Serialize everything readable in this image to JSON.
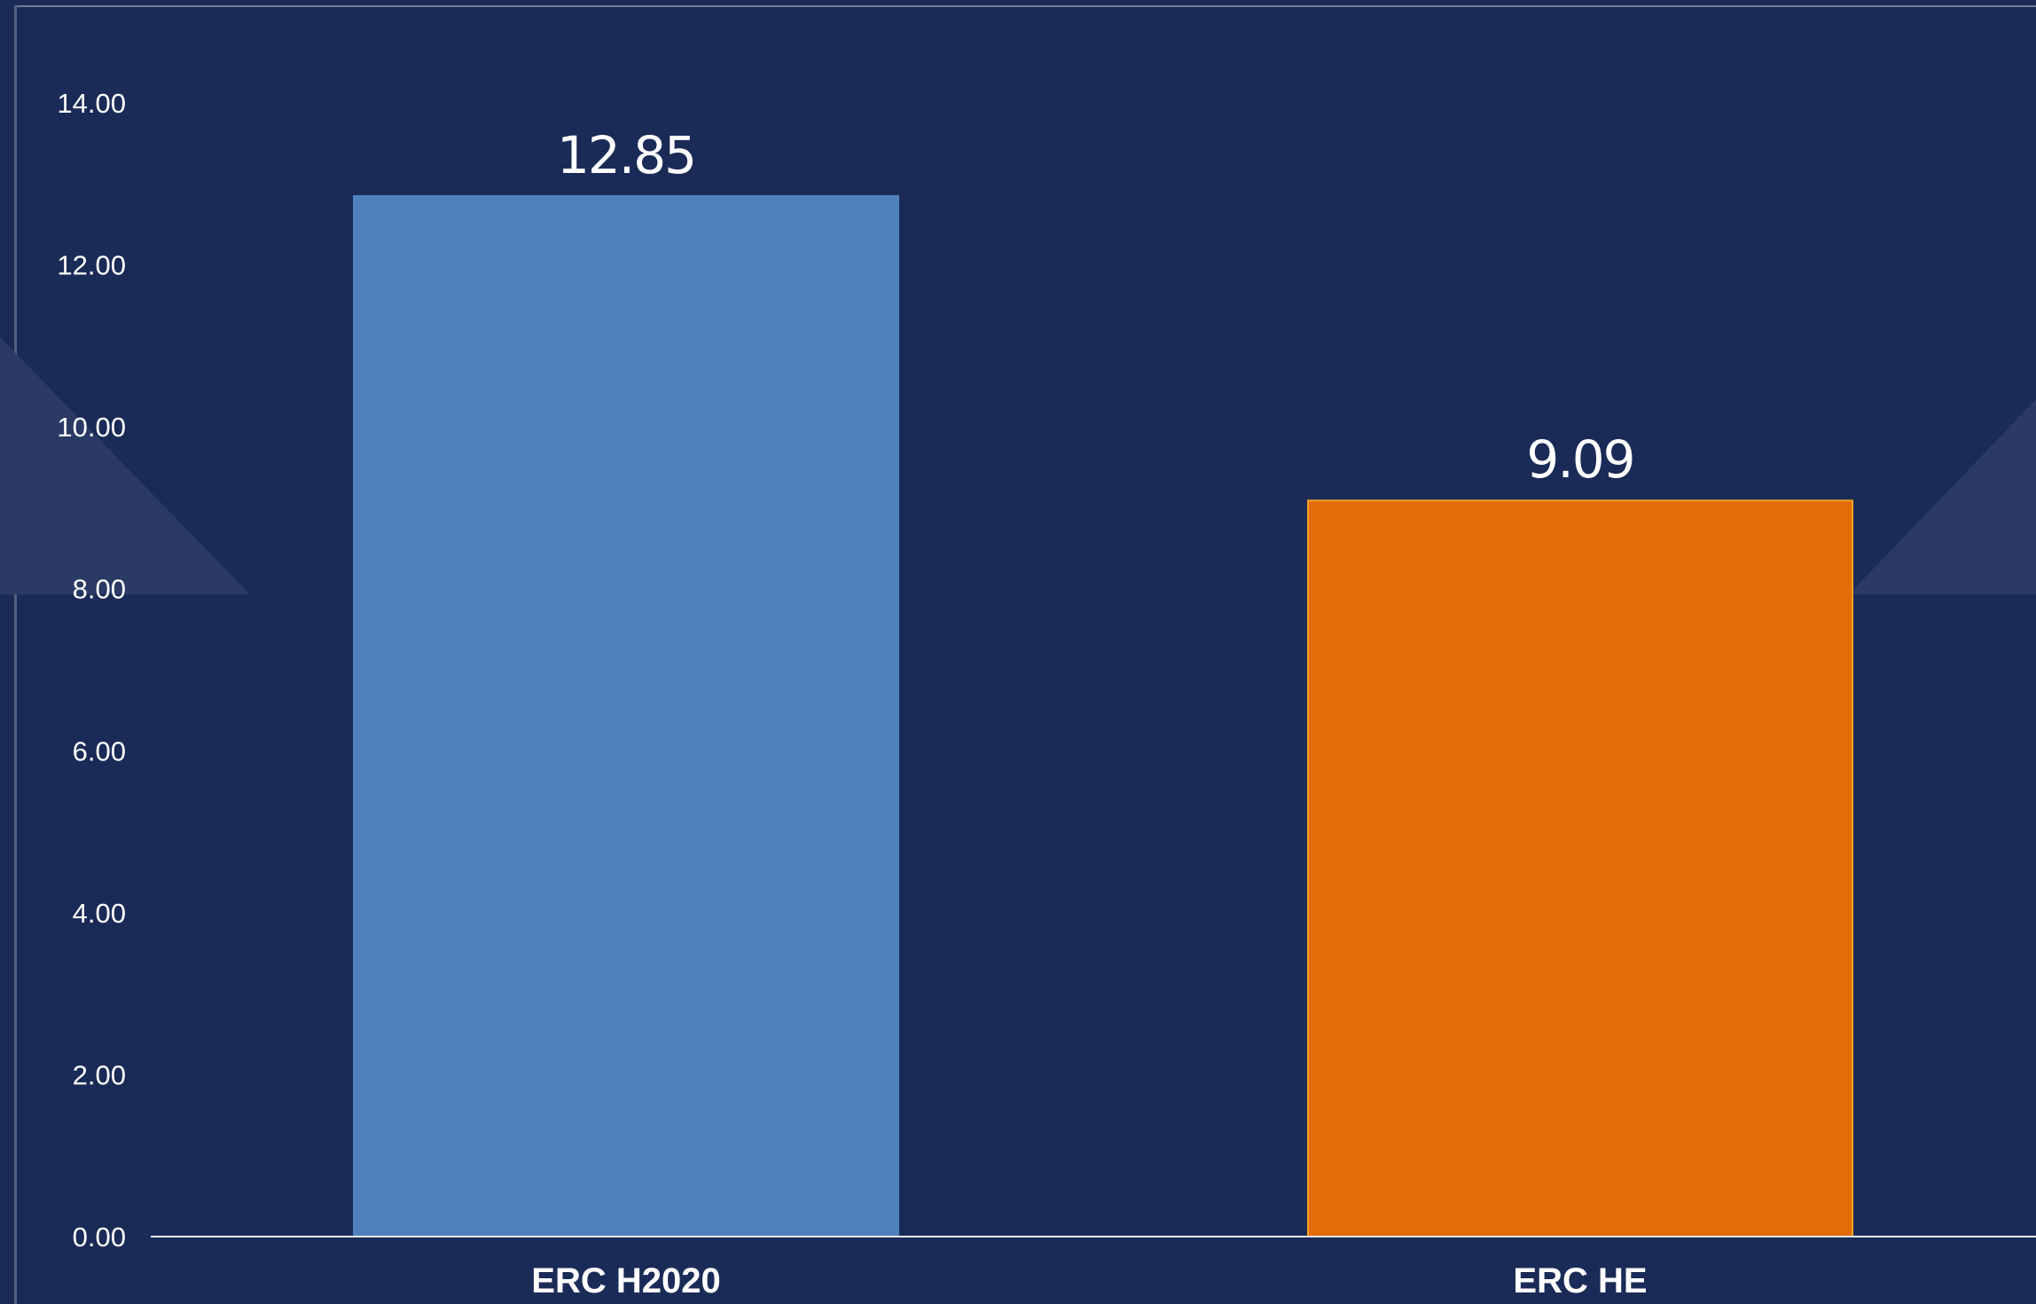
{
  "theme": {
    "background": "#1b2b57",
    "axis_color": "#e6e9f0",
    "text_color": "#ffffff",
    "decor_color": "#2a3a65"
  },
  "chart_data": {
    "type": "bar",
    "categories": [
      "ERC H2020",
      "ERC HE"
    ],
    "values": [
      12.85,
      9.09
    ],
    "data_labels": [
      "12.85",
      "9.09"
    ],
    "bar_colors": [
      "#4f81bd",
      "#e36c0a"
    ],
    "bar_outline_colors": [
      "#4f81bd",
      "#f0a020"
    ],
    "ylim": [
      0,
      14
    ],
    "yticks": [
      "0.00",
      "2.00",
      "4.00",
      "6.00",
      "8.00",
      "10.00",
      "12.00",
      "14.00"
    ],
    "ytick_values": [
      0,
      2,
      4,
      6,
      8,
      10,
      12,
      14
    ],
    "grid": false,
    "legend": "none"
  }
}
